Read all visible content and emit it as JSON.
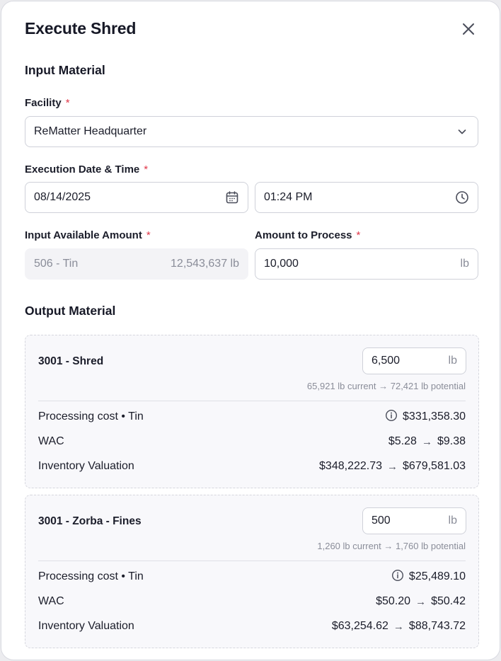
{
  "dialog": {
    "title": "Execute Shred",
    "close_icon": "close-icon"
  },
  "input_section": {
    "title": "Input Material",
    "facility": {
      "label": "Facility",
      "required_mark": "*",
      "value": "ReMatter Headquarter",
      "icon": "chevron-down-icon"
    },
    "execution": {
      "label": "Execution Date & Time",
      "required_mark": "*",
      "date_value": "08/14/2025",
      "date_icon": "calendar-icon",
      "time_value": "01:24 PM",
      "time_icon": "clock-icon"
    },
    "available": {
      "label": "Input Available Amount",
      "required_mark": "*",
      "material": "506 - Tin",
      "amount": "12,543,637 lb"
    },
    "to_process": {
      "label": "Amount to Process",
      "required_mark": "*",
      "value": "10,000",
      "unit": "lb"
    }
  },
  "output_section": {
    "title": "Output Material",
    "items": [
      {
        "name": "3001 - Shred",
        "amount": "6,500",
        "unit": "lb",
        "current": "65,921 lb current",
        "potential": "72,421 lb potential",
        "processing_label": "Processing cost • Tin",
        "processing_cost": "$331,358.30",
        "wac_label": "WAC",
        "wac_from": "$5.28",
        "wac_to": "$9.38",
        "valuation_label": "Inventory Valuation",
        "valuation_from": "$348,222.73",
        "valuation_to": "$679,581.03"
      },
      {
        "name": "3001 - Zorba - Fines",
        "amount": "500",
        "unit": "lb",
        "current": "1,260 lb current",
        "potential": "1,760 lb potential",
        "processing_label": "Processing cost • Tin",
        "processing_cost": "$25,489.10",
        "wac_label": "WAC",
        "wac_from": "$50.20",
        "wac_to": "$50.42",
        "valuation_label": "Inventory Valuation",
        "valuation_from": "$63,254.62",
        "valuation_to": "$88,743.72"
      }
    ]
  },
  "colors": {
    "required": "#e0384a",
    "muted_text": "#8a8d99",
    "card_bg": "#f8f8fb"
  }
}
